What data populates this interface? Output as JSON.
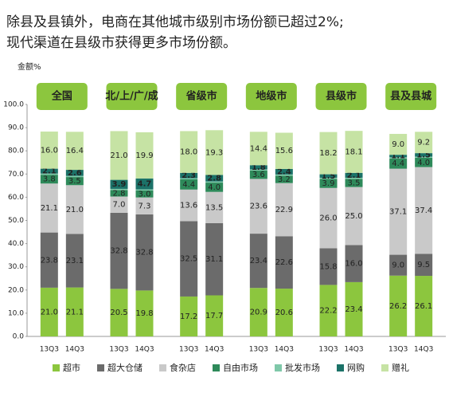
{
  "chart_data": {
    "type": "grouped-stacked-bar",
    "title": "除县及县镇外，电商在其他城市级别市场份额已超过2%;",
    "subtitle": "现代渠道在县级市获得更多市场份额。",
    "y_label": "金额%",
    "groups": [
      "全国",
      "北/上/广/成",
      "省级市",
      "地级市",
      "县级市",
      "县及县城"
    ],
    "categories": [
      "13Q3",
      "14Q3",
      "13Q3",
      "14Q3",
      "13Q3",
      "14Q3",
      "13Q3",
      "14Q3",
      "13Q3",
      "14Q3",
      "13Q3",
      "14Q3"
    ],
    "ylim": [
      0,
      100
    ],
    "yticks": [
      {
        "value": 0,
        "label": "0.0"
      },
      {
        "value": 10,
        "label": "10.0"
      },
      {
        "value": 20,
        "label": "20.0"
      },
      {
        "value": 30,
        "label": "30.0"
      },
      {
        "value": 40,
        "label": "40.0"
      },
      {
        "value": 50,
        "label": "50.0"
      },
      {
        "value": 60,
        "label": "60.0"
      },
      {
        "value": 70,
        "label": "70.0"
      },
      {
        "value": 80,
        "label": "80.0"
      },
      {
        "value": 90,
        "label": "90.0"
      },
      {
        "value": 100,
        "label": "100.0"
      }
    ],
    "series": [
      {
        "name": "超市",
        "color": "#8cc63e",
        "label_color": "#222",
        "values": [
          21.0,
          21.1,
          20.5,
          19.8,
          17.2,
          17.7,
          20.9,
          20.6,
          22.2,
          23.4,
          26.2,
          26.1
        ],
        "value_labels": [
          "21.0",
          "21.1",
          "20.5",
          "19.8",
          "17.2",
          "17.7",
          "20.9",
          "20.6",
          "22.2",
          "23.4",
          "26.2",
          "26.1"
        ]
      },
      {
        "name": "超大仓储",
        "color": "#6b6b6b",
        "label_color": "#222",
        "values": [
          23.8,
          23.1,
          32.8,
          32.8,
          32.5,
          31.1,
          23.4,
          22.6,
          15.8,
          16.0,
          9.0,
          9.5
        ],
        "value_labels": [
          "23.8",
          "23.1",
          "32.8",
          "32.8",
          "32.5",
          "31.1",
          "23.4",
          "22.6",
          "15.8",
          "16.0",
          "9.0",
          "9.5"
        ]
      },
      {
        "name": "食杂店",
        "color": "#c9c9c9",
        "label_color": "#222",
        "values": [
          21.1,
          21.0,
          7.0,
          7.3,
          13.6,
          13.5,
          23.6,
          22.9,
          26.0,
          25.0,
          37.1,
          37.4
        ],
        "value_labels": [
          "21.1",
          "21.0",
          "7.0",
          "7.3",
          "13.6",
          "13.5",
          "23.6",
          "22.9",
          "26.0",
          "25.0",
          "37.1",
          "37.4"
        ]
      },
      {
        "name": "自由市场",
        "color": "#2e8a5a",
        "label_color": "#222",
        "values": [
          3.8,
          3.5,
          2.8,
          3.0,
          4.4,
          4.0,
          3.6,
          3.2,
          3.9,
          3.5,
          4.4,
          4.0
        ],
        "value_labels": [
          "3.8",
          "3.5",
          "2.8",
          "3.0",
          "4.4",
          "4.0",
          "3.6",
          "3.2",
          "3.9",
          "3.5",
          "4.4",
          "4.0"
        ]
      },
      {
        "name": "批发市场",
        "color": "#7fc8a9",
        "label_color": "#222",
        "values": [
          0.5,
          0.5,
          0.5,
          0.5,
          0.5,
          0.5,
          0.5,
          0.5,
          0.5,
          0.5,
          0.5,
          0.5
        ]
      },
      {
        "name": "网购",
        "color": "#1b7268",
        "label_color": "#fff",
        "values": [
          2.1,
          2.6,
          3.9,
          4.7,
          2.3,
          2.8,
          1.8,
          2.4,
          1.5,
          2.1,
          1.1,
          1.5
        ],
        "value_labels": [
          "2.1",
          "2.6",
          "3.9",
          "4.7",
          "2.3",
          "2.8",
          "1.8",
          "2.4",
          "1.5",
          "2.1",
          "1.1",
          "1.5"
        ]
      },
      {
        "name": "赠礼",
        "color": "#c6e3a4",
        "label_color": "#222",
        "values": [
          16.0,
          16.4,
          21.0,
          19.9,
          18.0,
          19.3,
          14.4,
          15.6,
          18.2,
          18.1,
          9.0,
          9.2
        ],
        "value_labels": [
          "16.0",
          "16.4",
          "21.0",
          "19.9",
          "18.0",
          "19.3",
          "14.4",
          "15.6",
          "18.2",
          "18.1",
          "9.0",
          "9.2"
        ]
      }
    ]
  }
}
